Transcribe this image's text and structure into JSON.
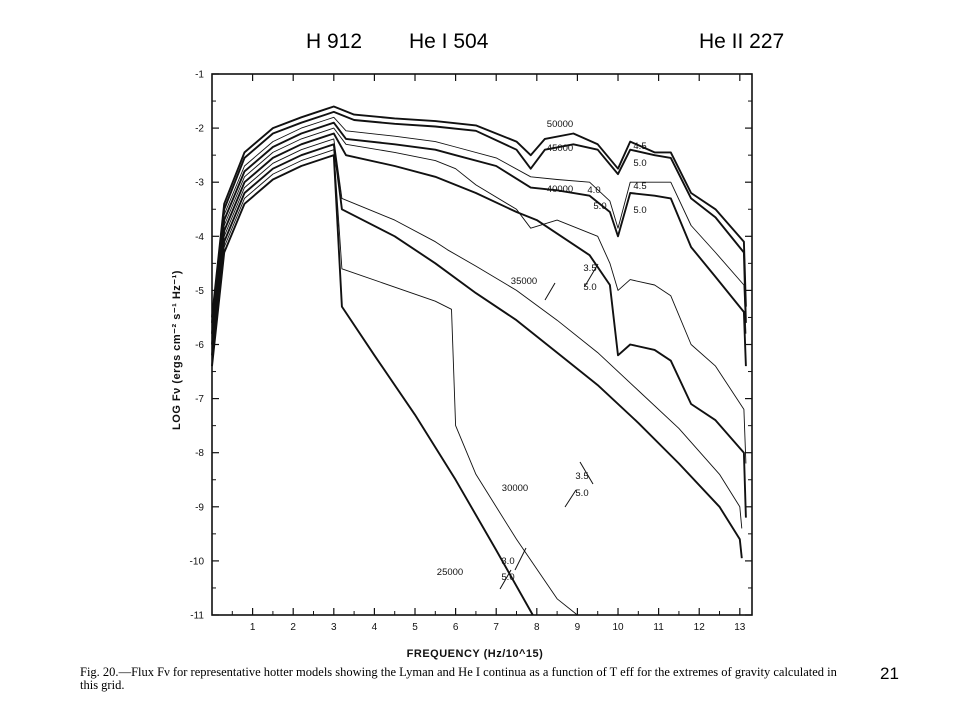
{
  "slide": {
    "top_labels": [
      "H 912",
      "He I 504",
      "He II 227"
    ],
    "page_number": "21"
  },
  "caption": {
    "fig_label": "Fig. 20.",
    "text": "—Flux Fν for representative hotter models showing the Lyman and He I continua as a function of T eff for the extremes of gravity calculated in this grid."
  },
  "chart_data": {
    "type": "line",
    "xlabel": "FREQUENCY (Hz/10^15)",
    "ylabel": "LOG Fν (ergs cm⁻² s⁻¹ Hz⁻¹)",
    "xlim": [
      0,
      13.3
    ],
    "ylim": [
      -11,
      -1
    ],
    "x_ticks": [
      "1",
      "2",
      "3",
      "4",
      "5",
      "6",
      "7",
      "8",
      "9",
      "10",
      "11",
      "12",
      "13"
    ],
    "y_ticks": [
      "-1",
      "-2",
      "-3",
      "-4",
      "-5",
      "-6",
      "-7",
      "-8",
      "-9",
      "-10",
      "-11"
    ],
    "grid": false,
    "series": [
      {
        "name": "50000 4.5",
        "heavy": true,
        "x": [
          0,
          0.3,
          0.8,
          1.5,
          2.2,
          2.8,
          3.0,
          3.5,
          4.5,
          5.5,
          6.5,
          7.5,
          7.85,
          8.2,
          8.9,
          9.5,
          10.0,
          10.3,
          10.9,
          11.3,
          11.8,
          12.4,
          13.1,
          13.15
        ],
        "y": [
          -5.5,
          -3.4,
          -2.45,
          -2.0,
          -1.8,
          -1.65,
          -1.6,
          -1.75,
          -1.82,
          -1.87,
          -1.95,
          -2.25,
          -2.5,
          -2.2,
          -2.1,
          -2.3,
          -2.75,
          -2.25,
          -2.45,
          -2.45,
          -3.2,
          -3.5,
          -4.1,
          -5.3
        ]
      },
      {
        "name": "45000 5.0",
        "heavy": true,
        "x": [
          0,
          0.3,
          0.8,
          1.5,
          2.2,
          2.8,
          3.0,
          3.5,
          4.5,
          5.5,
          6.5,
          7.5,
          7.85,
          8.2,
          8.9,
          9.5,
          10.0,
          10.3,
          10.9,
          11.3,
          11.8,
          12.4,
          13.1,
          13.15
        ],
        "y": [
          -5.6,
          -3.5,
          -2.55,
          -2.1,
          -1.9,
          -1.75,
          -1.7,
          -1.85,
          -1.92,
          -1.97,
          -2.05,
          -2.4,
          -2.75,
          -2.4,
          -2.3,
          -2.4,
          -2.85,
          -2.4,
          -2.5,
          -2.55,
          -3.3,
          -3.65,
          -4.3,
          -5.6
        ]
      },
      {
        "name": "40000 4.5",
        "heavy": false,
        "x": [
          0,
          0.3,
          0.8,
          1.5,
          2.2,
          2.8,
          3.0,
          3.3,
          4.5,
          5.5,
          6.0,
          7.0,
          7.85,
          8.5,
          9.3,
          9.8,
          10.0,
          10.3,
          10.9,
          11.3,
          11.8,
          12.4,
          13.1,
          13.15
        ],
        "y": [
          -5.7,
          -3.6,
          -2.7,
          -2.25,
          -2.0,
          -1.85,
          -1.8,
          -2.05,
          -2.15,
          -2.25,
          -2.35,
          -2.55,
          -2.9,
          -2.95,
          -3.0,
          -3.35,
          -3.85,
          -3.0,
          -3.0,
          -3.0,
          -3.8,
          -4.3,
          -4.9,
          -5.8
        ]
      },
      {
        "name": "40000 5.0",
        "heavy": true,
        "x": [
          0,
          0.3,
          0.8,
          1.5,
          2.2,
          2.8,
          3.0,
          3.3,
          4.5,
          5.5,
          6.0,
          7.0,
          7.85,
          8.5,
          9.3,
          9.8,
          10.0,
          10.3,
          10.9,
          11.3,
          11.8,
          12.4,
          13.1,
          13.15
        ],
        "y": [
          -5.8,
          -3.7,
          -2.8,
          -2.35,
          -2.1,
          -1.95,
          -1.9,
          -2.2,
          -2.3,
          -2.4,
          -2.5,
          -2.7,
          -3.1,
          -3.15,
          -3.25,
          -3.55,
          -4.0,
          -3.2,
          -3.25,
          -3.3,
          -4.2,
          -4.75,
          -5.4,
          -6.4
        ]
      },
      {
        "name": "35000 3.5",
        "heavy": false,
        "x": [
          0,
          0.3,
          0.8,
          1.5,
          2.2,
          2.8,
          3.0,
          3.3,
          4.5,
          5.5,
          6.0,
          6.5,
          7.5,
          7.85,
          8.5,
          9.5,
          9.8,
          10.0,
          10.3,
          10.9,
          11.3,
          11.8,
          12.4,
          13.1,
          13.15
        ],
        "y": [
          -5.9,
          -3.8,
          -2.9,
          -2.45,
          -2.2,
          -2.05,
          -2.0,
          -2.3,
          -2.45,
          -2.6,
          -2.75,
          -3.05,
          -3.5,
          -3.85,
          -3.7,
          -4.0,
          -4.5,
          -5.0,
          -4.8,
          -4.9,
          -5.1,
          -6.0,
          -6.4,
          -7.2,
          -8.2
        ]
      },
      {
        "name": "35000 5.0",
        "heavy": true,
        "x": [
          0,
          0.3,
          0.8,
          1.5,
          2.2,
          2.8,
          3.0,
          3.3,
          4.5,
          5.5,
          6.0,
          6.5,
          7.5,
          8.0,
          8.5,
          9.3,
          9.8,
          10.0,
          10.3,
          10.9,
          11.3,
          11.8,
          12.4,
          13.1,
          13.15
        ],
        "y": [
          -6.0,
          -3.9,
          -3.0,
          -2.55,
          -2.3,
          -2.15,
          -2.1,
          -2.5,
          -2.7,
          -2.9,
          -3.05,
          -3.2,
          -3.55,
          -3.7,
          -3.95,
          -4.35,
          -4.9,
          -6.2,
          -6.0,
          -6.1,
          -6.3,
          -7.1,
          -7.4,
          -8.0,
          -9.2
        ]
      },
      {
        "name": "30000 3.5",
        "heavy": false,
        "x": [
          0,
          0.3,
          0.8,
          1.5,
          2.2,
          2.8,
          3.0,
          3.2,
          4.5,
          5.5,
          5.8,
          6.5,
          7.5,
          8.5,
          9.5,
          10.5,
          11.5,
          12.5,
          13.0,
          13.05
        ],
        "y": [
          -6.1,
          -4.0,
          -3.1,
          -2.65,
          -2.4,
          -2.25,
          -2.2,
          -3.3,
          -3.7,
          -4.1,
          -4.25,
          -4.55,
          -5.0,
          -5.55,
          -6.15,
          -6.85,
          -7.55,
          -8.4,
          -9.0,
          -9.4
        ]
      },
      {
        "name": "30000 5.0",
        "heavy": true,
        "x": [
          0,
          0.3,
          0.8,
          1.5,
          2.2,
          2.8,
          3.0,
          3.2,
          4.5,
          5.5,
          6.5,
          7.5,
          8.5,
          9.5,
          10.5,
          11.5,
          12.5,
          13.0,
          13.05
        ],
        "y": [
          -6.2,
          -4.1,
          -3.2,
          -2.75,
          -2.5,
          -2.35,
          -2.3,
          -3.5,
          -4.0,
          -4.5,
          -5.05,
          -5.55,
          -6.15,
          -6.75,
          -7.45,
          -8.2,
          -9.0,
          -9.6,
          -9.95
        ]
      },
      {
        "name": "25000 3.0",
        "heavy": false,
        "x": [
          0,
          0.3,
          0.8,
          1.5,
          2.2,
          2.8,
          3.0,
          3.2,
          5.5,
          5.9,
          6.0,
          6.5,
          7.5,
          8.5,
          9.0
        ],
        "y": [
          -6.3,
          -4.2,
          -3.3,
          -2.85,
          -2.6,
          -2.45,
          -2.4,
          -4.6,
          -5.2,
          -5.35,
          -7.5,
          -8.4,
          -9.6,
          -10.7,
          -11.0
        ]
      },
      {
        "name": "25000 5.0",
        "heavy": true,
        "x": [
          0,
          0.3,
          0.8,
          1.5,
          2.2,
          2.8,
          3.0,
          3.2,
          4.0,
          5.0,
          6.0,
          7.0,
          7.9
        ],
        "y": [
          -6.4,
          -4.3,
          -3.4,
          -2.95,
          -2.7,
          -2.55,
          -2.5,
          -5.3,
          -6.2,
          -7.3,
          -8.5,
          -9.8,
          -11.0
        ]
      }
    ],
    "annotations": [
      "50000",
      "45000",
      "4.5",
      "5.0",
      "40000",
      "4.0",
      "5.0",
      "4.5",
      "5.0",
      "35000",
      "3.5",
      "5.0",
      "30000",
      "3.5",
      "5.0",
      "25000",
      "3.0",
      "5.0"
    ]
  }
}
